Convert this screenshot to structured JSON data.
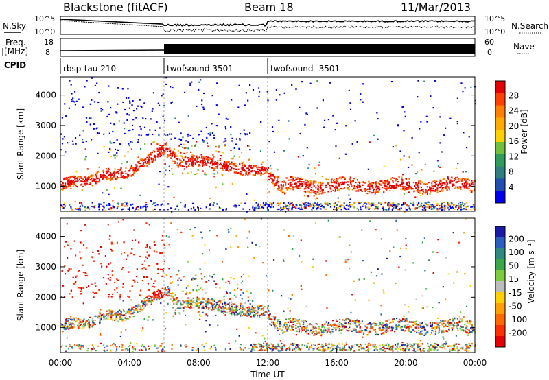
{
  "header": {
    "station": "Blackstone (fitACF)",
    "beam": "Beam 18",
    "date": "11/Mar/2013"
  },
  "strips": {
    "nsky_label": "N.Sky",
    "nsearch_label": "N.Search",
    "noise_ticks": [
      "10^5",
      "10^0"
    ],
    "freq_label_line1": "Freq.",
    "freq_label_line2": "[MHz]",
    "freq_ticks": [
      "18",
      "8"
    ],
    "nave_label": "Nave",
    "nave_ticks": [
      "60",
      "0"
    ],
    "cpid_label": "CPID",
    "cpid_segments": [
      {
        "label": "rbsp-tau 210",
        "start": 0,
        "end": 6
      },
      {
        "label": "twofsound 3501",
        "start": 6,
        "end": 12
      },
      {
        "label": "twofsound -3501",
        "start": 12,
        "end": 24
      }
    ]
  },
  "axes": {
    "xlabel": "Time UT",
    "ylabel": "Slant Range [km]",
    "x_ticks": [
      "00:00",
      "04:00",
      "08:00",
      "12:00",
      "16:00",
      "20:00",
      "00:00"
    ],
    "y_ticks": [
      "1000",
      "2000",
      "3000",
      "4000"
    ]
  },
  "colorbars": {
    "power": {
      "label": "Power [dB]",
      "ticks": [
        "28",
        "24",
        "20",
        "16",
        "12",
        "8",
        "4"
      ],
      "colors": [
        "#e60000",
        "#ff4000",
        "#ff8000",
        "#ffaa00",
        "#ffd000",
        "#6fc03a",
        "#2e9c5a",
        "#2e7f80",
        "#1f4fb0",
        "#0000ee"
      ]
    },
    "velocity": {
      "label": "Velocity [m s⁻¹]",
      "ticks": [
        "200",
        "100",
        "50",
        "15",
        "-15",
        "-50",
        "-100",
        "-200"
      ],
      "colors": [
        "#1a1aa8",
        "#2a5fc0",
        "#2e8a80",
        "#3aa84a",
        "#7ccd3c",
        "#bdbdbd",
        "#ffd000",
        "#ffa000",
        "#ff6a00",
        "#ff3000",
        "#e60000"
      ]
    }
  },
  "chart_data": {
    "type": "heatmap",
    "x_range_hours": [
      0,
      24
    ],
    "y_range_km": [
      180,
      4600
    ],
    "panels": [
      "power",
      "velocity"
    ],
    "cpid_boundaries_hours": [
      6,
      12
    ],
    "grid": false
  }
}
